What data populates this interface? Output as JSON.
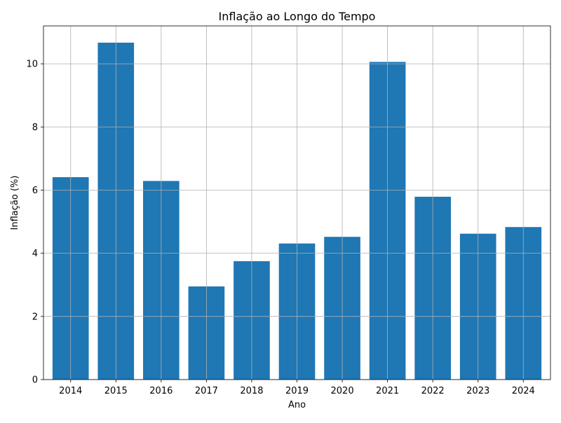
{
  "chart_data": {
    "type": "bar",
    "title": "Inflação ao Longo do Tempo",
    "xlabel": "Ano",
    "ylabel": "Inflação (%)",
    "categories": [
      "2014",
      "2015",
      "2016",
      "2017",
      "2018",
      "2019",
      "2020",
      "2021",
      "2022",
      "2023",
      "2024"
    ],
    "values": [
      6.41,
      10.67,
      6.29,
      2.95,
      3.75,
      4.31,
      4.52,
      10.06,
      5.79,
      4.62,
      4.83
    ],
    "ylim": [
      0,
      11.2
    ],
    "yticks": [
      "0",
      "2",
      "4",
      "6",
      "8",
      "10"
    ],
    "grid": true,
    "bar_color": "#1f77b4"
  }
}
